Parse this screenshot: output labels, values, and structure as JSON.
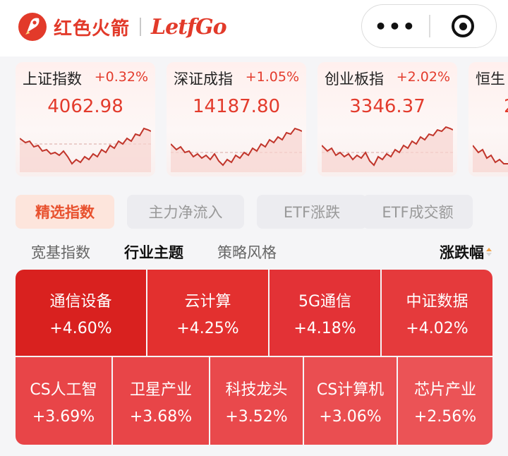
{
  "header": {
    "brand_cn": "红色火箭",
    "brand_en": "LetfGo",
    "capsule_menu_icon": "more-dots-icon",
    "capsule_close_icon": "target-close-icon"
  },
  "index_cards": [
    {
      "name": "上证指数",
      "change": "+0.32%",
      "value": "4062.98"
    },
    {
      "name": "深证成指",
      "change": "+1.05%",
      "value": "14187.80"
    },
    {
      "name": "创业板指",
      "change": "+2.02%",
      "value": "3346.37"
    },
    {
      "name": "恒生",
      "change": "",
      "value": "2"
    }
  ],
  "main_tabs": [
    {
      "label": "精选指数",
      "active": true
    },
    {
      "label": "主力净流入",
      "active": false
    },
    {
      "label": "ETF涨跌",
      "active": false
    },
    {
      "label": "ETF成交额",
      "active": false
    }
  ],
  "sub_tabs": [
    {
      "label": "宽基指数",
      "active": false
    },
    {
      "label": "行业主题",
      "active": true
    },
    {
      "label": "策略风格",
      "active": false
    }
  ],
  "sort": {
    "label": "涨跌幅"
  },
  "heatmap": [
    {
      "name": "通信设备",
      "change": "+4.60%"
    },
    {
      "name": "云计算",
      "change": "+4.25%"
    },
    {
      "name": "5G通信",
      "change": "+4.18%"
    },
    {
      "name": "中证数据",
      "change": "+4.02%"
    },
    {
      "name": "CS人工智",
      "change": "+3.69%"
    },
    {
      "name": "卫星产业",
      "change": "+3.68%"
    },
    {
      "name": "科技龙头",
      "change": "+3.52%"
    },
    {
      "name": "CS计算机",
      "change": "+3.06%"
    },
    {
      "name": "芯片产业",
      "change": "+2.56%"
    }
  ],
  "colors": {
    "accent": "#e33b2c",
    "heat_strong": "#d9211f",
    "heat_mid": "#e33236",
    "heat_light": "#e84a50",
    "tab_active_bg": "#fde5dc",
    "tab_active_text": "#e8512e"
  }
}
